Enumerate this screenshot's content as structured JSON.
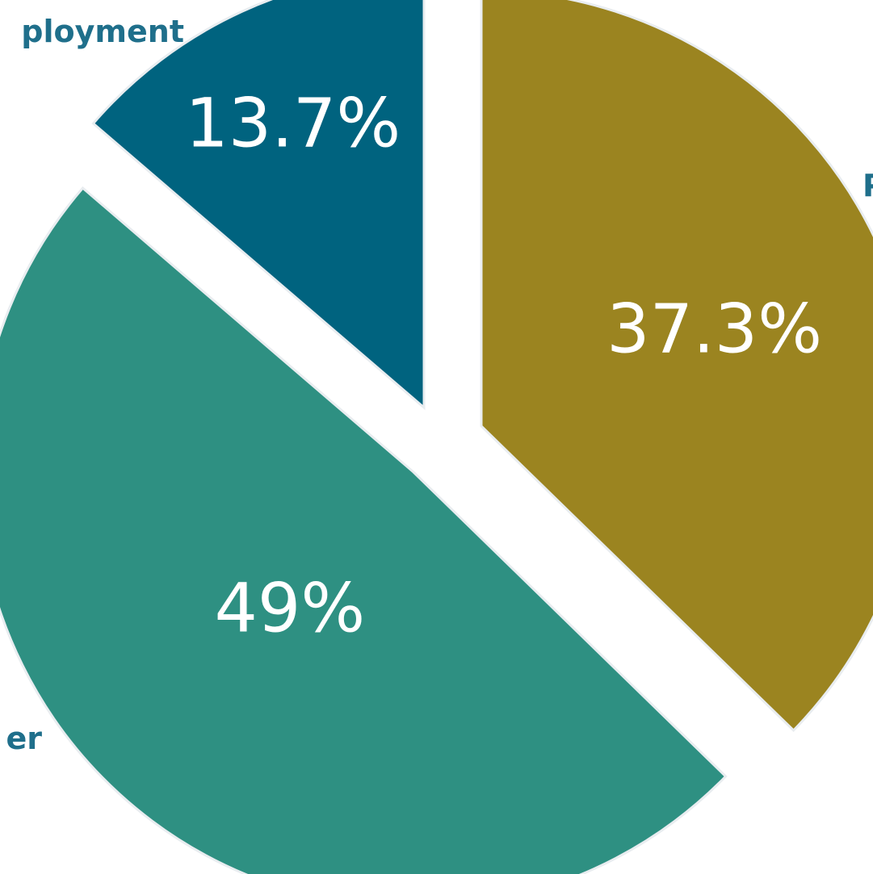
{
  "chart_data": {
    "type": "pie",
    "title": "",
    "slices": [
      {
        "label": "ployment",
        "value": 13.7,
        "display": "13.7%",
        "color": "#00637f",
        "label_color": "#1f6f8b"
      },
      {
        "label": "P",
        "value": 37.3,
        "display": "37.3%",
        "color": "#9b8420",
        "label_color": "#1f6f8b"
      },
      {
        "label": "er",
        "value": 49,
        "display": "49%",
        "color": "#2e9082",
        "label_color": "#1f6f8b"
      }
    ],
    "exploded": true,
    "start_angle_deg": 0,
    "direction": "clockwise"
  }
}
